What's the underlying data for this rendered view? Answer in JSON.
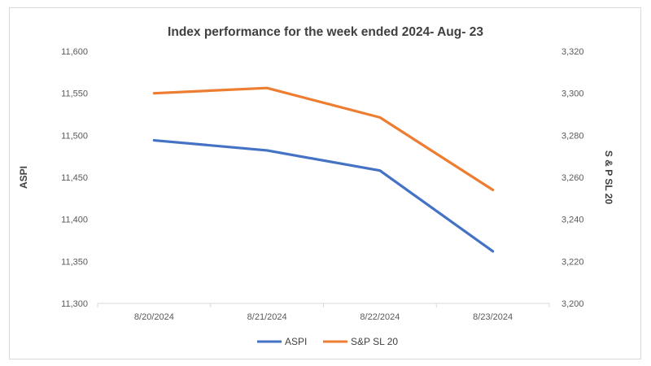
{
  "chart_data": {
    "type": "line",
    "title": "Index performance for the week ended 2024- Aug- 23",
    "categories": [
      "8/20/2024",
      "8/21/2024",
      "8/22/2024",
      "8/23/2024"
    ],
    "series": [
      {
        "name": "ASPI",
        "axis": "left",
        "color": "#4472c4",
        "values": [
          11494,
          11482,
          11458,
          11362
        ]
      },
      {
        "name": "S&P SL 20",
        "axis": "right",
        "color": "#ed7d31",
        "values": [
          3300,
          3302.5,
          3288.5,
          3254
        ]
      }
    ],
    "y_left": {
      "label": "ASPI",
      "ylim": [
        11300,
        11600
      ],
      "ticks": [
        "11,300",
        "11,350",
        "11,400",
        "11,450",
        "11,500",
        "11,550",
        "11,600"
      ]
    },
    "y_right": {
      "label": "S & P SL 20",
      "ylim": [
        3200,
        3320
      ],
      "ticks": [
        "3,200",
        "3,220",
        "3,240",
        "3,260",
        "3,280",
        "3,300",
        "3,320"
      ]
    },
    "grid": false,
    "legend": "bottom"
  }
}
